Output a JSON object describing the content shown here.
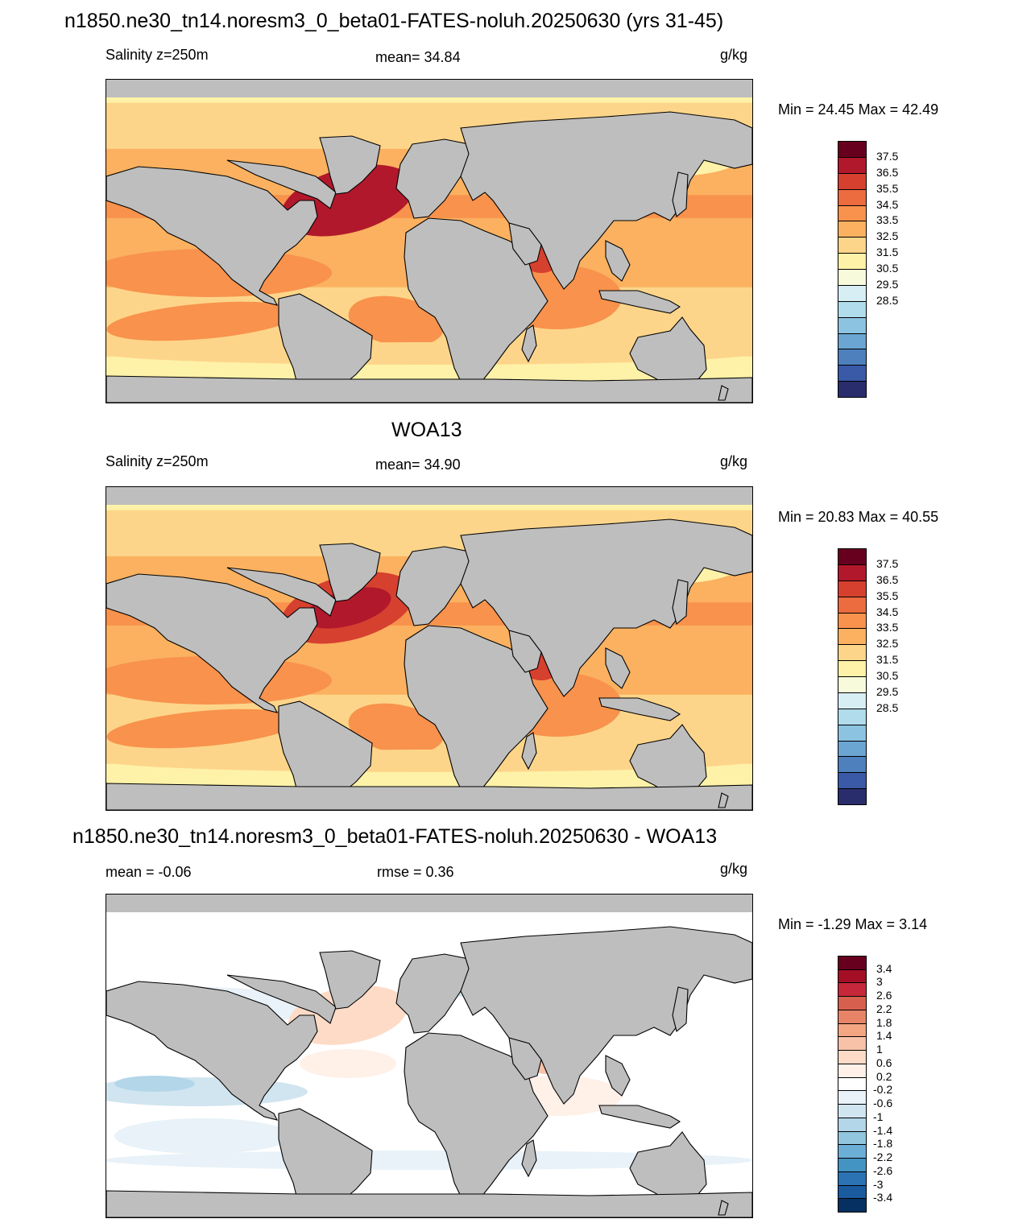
{
  "panels": [
    {
      "id": "model",
      "title": "n1850.ne30_tn14.noresm3_0_beta01-FATES-noluh.20250630 (yrs 31-45)",
      "left_label": "Salinity z=250m",
      "center_label": "mean=  34.84",
      "units": "g/kg",
      "minmax": "Min =  24.45 Max =  42.49",
      "palette": "abs",
      "cbar_labels": [
        "37.5",
        "36.5",
        "35.5",
        "34.5",
        "33.5",
        "32.5",
        "31.5",
        "30.5",
        "29.5",
        "28.5"
      ]
    },
    {
      "id": "obs",
      "title": "WOA13",
      "left_label": "Salinity z=250m",
      "center_label": "mean=  34.90",
      "units": "g/kg",
      "minmax": "Min =  20.83 Max =  40.55",
      "palette": "abs",
      "cbar_labels": [
        "37.5",
        "36.5",
        "35.5",
        "34.5",
        "33.5",
        "32.5",
        "31.5",
        "30.5",
        "29.5",
        "28.5"
      ]
    },
    {
      "id": "diff",
      "title": "n1850.ne30_tn14.noresm3_0_beta01-FATES-noluh.20250630 - WOA13",
      "left_label": "mean =  -0.06",
      "center_label": "rmse =   0.36",
      "units": "g/kg",
      "minmax": "Min =  -1.29 Max =   3.14",
      "palette": "diff",
      "cbar_labels": [
        "3.4",
        "3",
        "2.6",
        "2.2",
        "1.8",
        "1.4",
        "1",
        "0.6",
        "0.2",
        "-0.2",
        "-0.6",
        "-1",
        "-1.4",
        "-1.8",
        "-2.2",
        "-2.6",
        "-3",
        "-3.4"
      ]
    }
  ],
  "colors": {
    "land": "#bebebe",
    "abs_palette": [
      "#67001f",
      "#b2182b",
      "#d6402f",
      "#ec6b3f",
      "#f8924c",
      "#fbb160",
      "#fdd58a",
      "#fef2a8",
      "#f7fbdc",
      "#d7eef5",
      "#b0dcec",
      "#8cc3e0",
      "#6ba5d2",
      "#4d80bd",
      "#3a5aa8",
      "#2a2d6c"
    ],
    "diff_palette": [
      "#67001f",
      "#a50f26",
      "#c6283a",
      "#d6604d",
      "#e78467",
      "#f4a582",
      "#f8c2a8",
      "#fddbc7",
      "#fff0e8",
      "#ffffff",
      "#e8f2f8",
      "#d1e5f0",
      "#b3d6e9",
      "#92c5de",
      "#6baed6",
      "#4393c3",
      "#2c73b4",
      "#1a5a9e",
      "#053061"
    ]
  },
  "chart_data": [
    {
      "type": "heatmap",
      "title": "n1850.ne30_tn14.noresm3_0_beta01-FATES-noluh.20250630 (yrs 31-45)",
      "subtitle": "Salinity z=250m",
      "units": "g/kg",
      "mean": 34.84,
      "min": 24.45,
      "max": 42.49,
      "colorbar_levels": [
        28.5,
        29.5,
        30.5,
        31.5,
        32.5,
        33.5,
        34.5,
        35.5,
        36.5,
        37.5
      ]
    },
    {
      "type": "heatmap",
      "title": "WOA13",
      "subtitle": "Salinity z=250m",
      "units": "g/kg",
      "mean": 34.9,
      "min": 20.83,
      "max": 40.55,
      "colorbar_levels": [
        28.5,
        29.5,
        30.5,
        31.5,
        32.5,
        33.5,
        34.5,
        35.5,
        36.5,
        37.5
      ]
    },
    {
      "type": "heatmap",
      "title": "n1850.ne30_tn14.noresm3_0_beta01-FATES-noluh.20250630 - WOA13",
      "units": "g/kg",
      "mean": -0.06,
      "rmse": 0.36,
      "min": -1.29,
      "max": 3.14,
      "colorbar_levels": [
        -3.4,
        -3,
        -2.6,
        -2.2,
        -1.8,
        -1.4,
        -1,
        -0.6,
        -0.2,
        0.2,
        0.6,
        1,
        1.4,
        1.8,
        2.2,
        2.6,
        3,
        3.4
      ]
    }
  ]
}
